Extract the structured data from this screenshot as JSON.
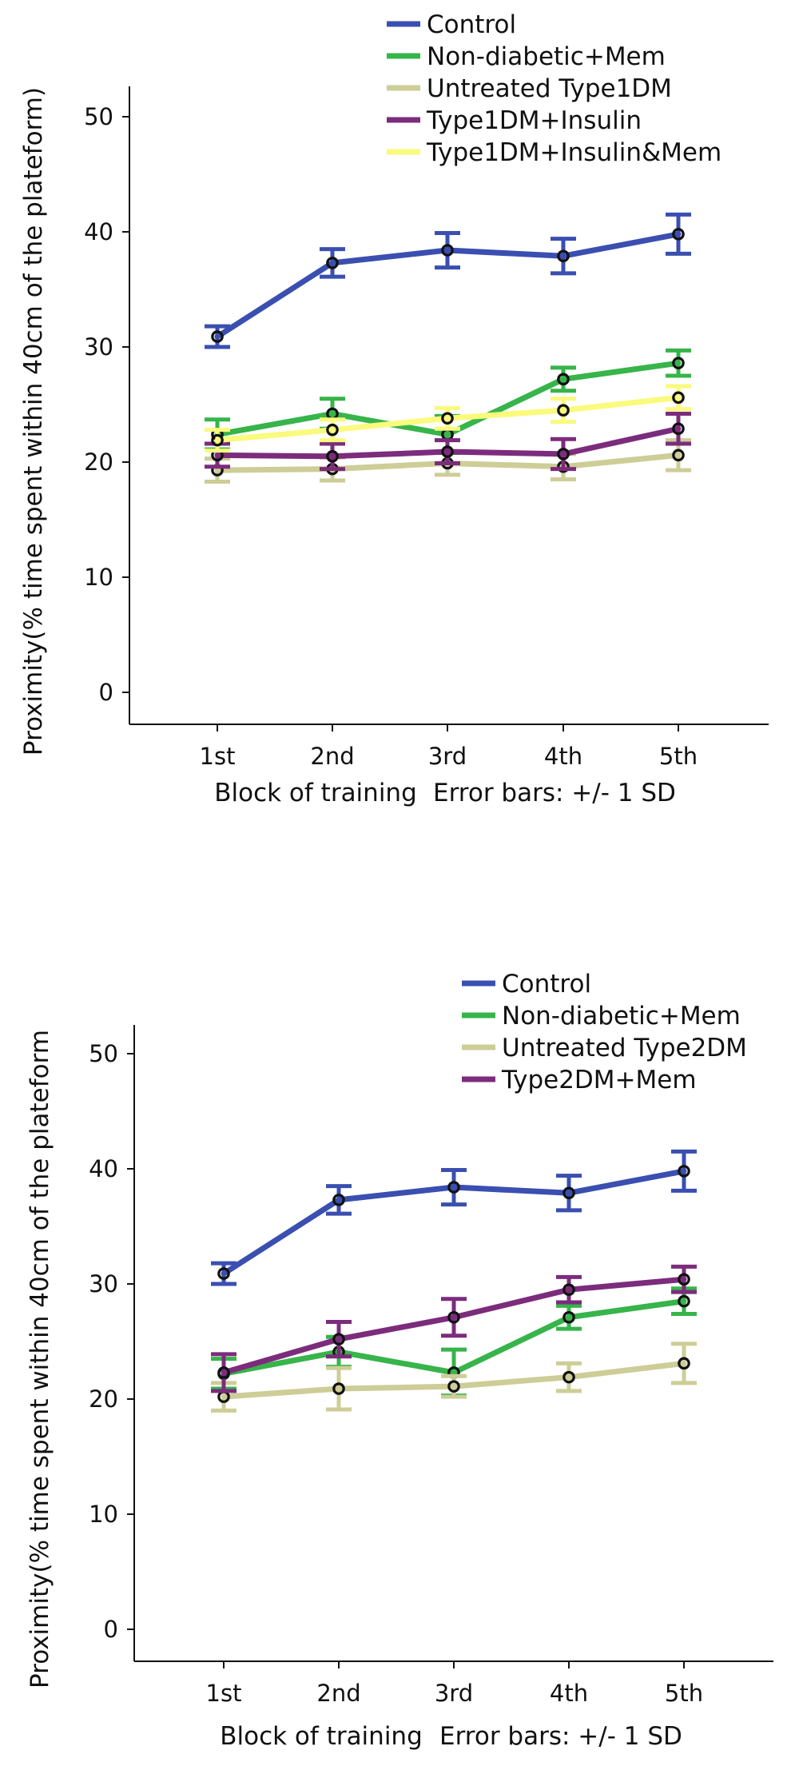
{
  "chart_data": [
    {
      "type": "line",
      "title": "",
      "xlabel": "Block of training",
      "ylabel": "Proximity(% time spent within 40cm of the plateform)",
      "note": "Error bars: +/- 1 SD",
      "categories": [
        "1st",
        "2nd",
        "3rd",
        "4th",
        "5th"
      ],
      "ylim": [
        0,
        52
      ],
      "yticks": [
        "0",
        "10",
        "20",
        "30",
        "40",
        "50"
      ],
      "legend_position": "top",
      "series": [
        {
          "name": "Control",
          "color": "#3a4fb0",
          "values": [
            30.9,
            37.3,
            38.4,
            37.9,
            39.8
          ],
          "sd": [
            0.9,
            1.2,
            1.5,
            1.5,
            1.7
          ]
        },
        {
          "name": "Non-diabetic+Mem",
          "color": "#37b44a",
          "values": [
            22.4,
            24.2,
            22.4,
            27.2,
            28.6
          ],
          "sd": [
            1.3,
            1.3,
            1.6,
            1.0,
            1.1
          ]
        },
        {
          "name": "Untreated Type1DM",
          "color": "#cdcd97",
          "values": [
            19.3,
            19.4,
            19.9,
            19.6,
            20.6
          ],
          "sd": [
            1.0,
            1.0,
            1.0,
            1.1,
            1.3
          ]
        },
        {
          "name": "Type1DM+Insulin",
          "color": "#7c2c7c",
          "values": [
            20.6,
            20.5,
            20.9,
            20.7,
            22.9
          ],
          "sd": [
            1.0,
            1.1,
            1.0,
            1.3,
            1.3
          ]
        },
        {
          "name": "Type1DM+Insulin&Mem",
          "color": "#fafa7d",
          "values": [
            21.9,
            22.8,
            23.8,
            24.5,
            25.6
          ],
          "sd": [
            0.9,
            0.9,
            0.9,
            1.0,
            1.0
          ]
        }
      ]
    },
    {
      "type": "line",
      "title": "",
      "xlabel": "Block of training",
      "ylabel": "Proximity(% time spent within 40cm of the plateform",
      "note": "Error bars: +/- 1 SD",
      "categories": [
        "1st",
        "2nd",
        "3rd",
        "4th",
        "5th"
      ],
      "ylim": [
        0,
        52
      ],
      "yticks": [
        "0",
        "10",
        "20",
        "30",
        "40",
        "50"
      ],
      "legend_position": "top",
      "series": [
        {
          "name": "Control",
          "color": "#3a4fb0",
          "values": [
            30.9,
            37.3,
            38.4,
            37.9,
            39.8
          ],
          "sd": [
            0.9,
            1.2,
            1.5,
            1.5,
            1.7
          ]
        },
        {
          "name": "Non-diabetic+Mem",
          "color": "#37b44a",
          "values": [
            22.2,
            24.1,
            22.3,
            27.1,
            28.5
          ],
          "sd": [
            1.3,
            1.3,
            2.0,
            1.0,
            1.1
          ]
        },
        {
          "name": "Untreated Type2DM",
          "color": "#cdcd97",
          "values": [
            20.2,
            20.9,
            21.1,
            21.9,
            23.1
          ],
          "sd": [
            1.2,
            1.8,
            0.9,
            1.2,
            1.7
          ]
        },
        {
          "name": "Type2DM+Mem",
          "color": "#7c2c7c",
          "values": [
            22.3,
            25.2,
            27.1,
            29.5,
            30.4
          ],
          "sd": [
            1.6,
            1.5,
            1.6,
            1.1,
            1.1
          ]
        }
      ]
    }
  ]
}
